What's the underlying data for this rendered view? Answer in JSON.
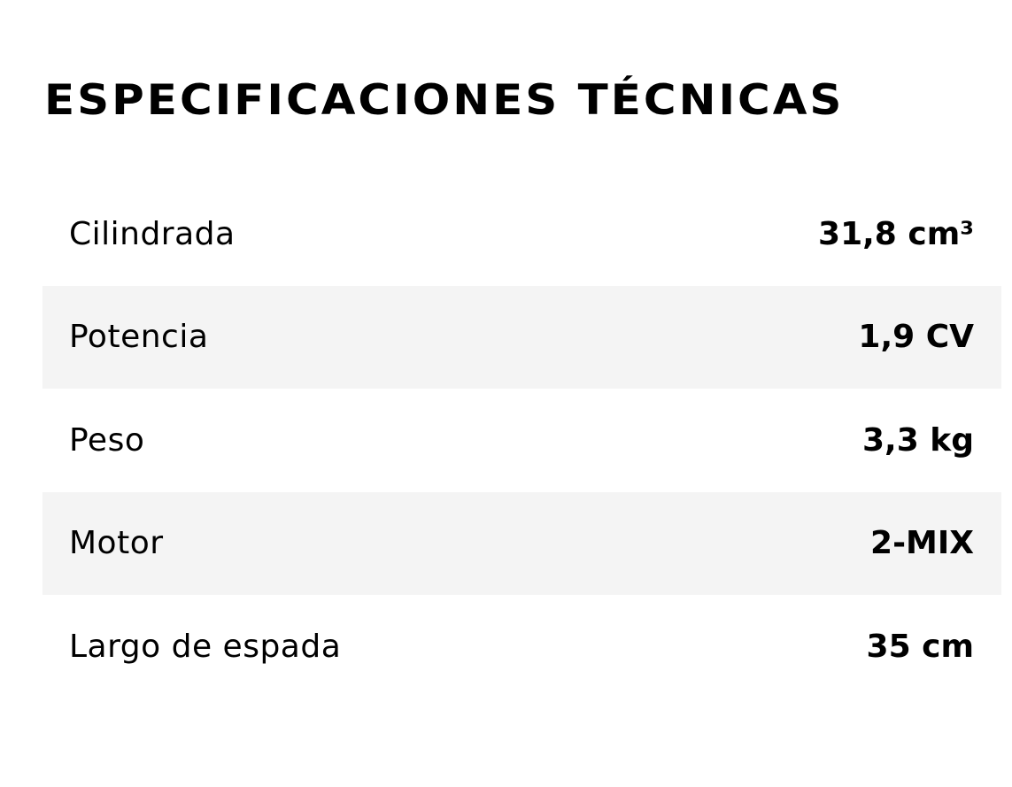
{
  "header": {
    "title": "ESPECIFICACIONES TÉCNICAS"
  },
  "table": {
    "rows": [
      [
        "Cilindrada",
        "31,8 cm³"
      ],
      [
        "Potencia",
        "1,9 CV"
      ],
      [
        "Peso",
        "3,3 kg"
      ],
      [
        "Motor",
        "2-MIX"
      ],
      [
        "Largo de espada",
        "35 cm"
      ]
    ]
  }
}
